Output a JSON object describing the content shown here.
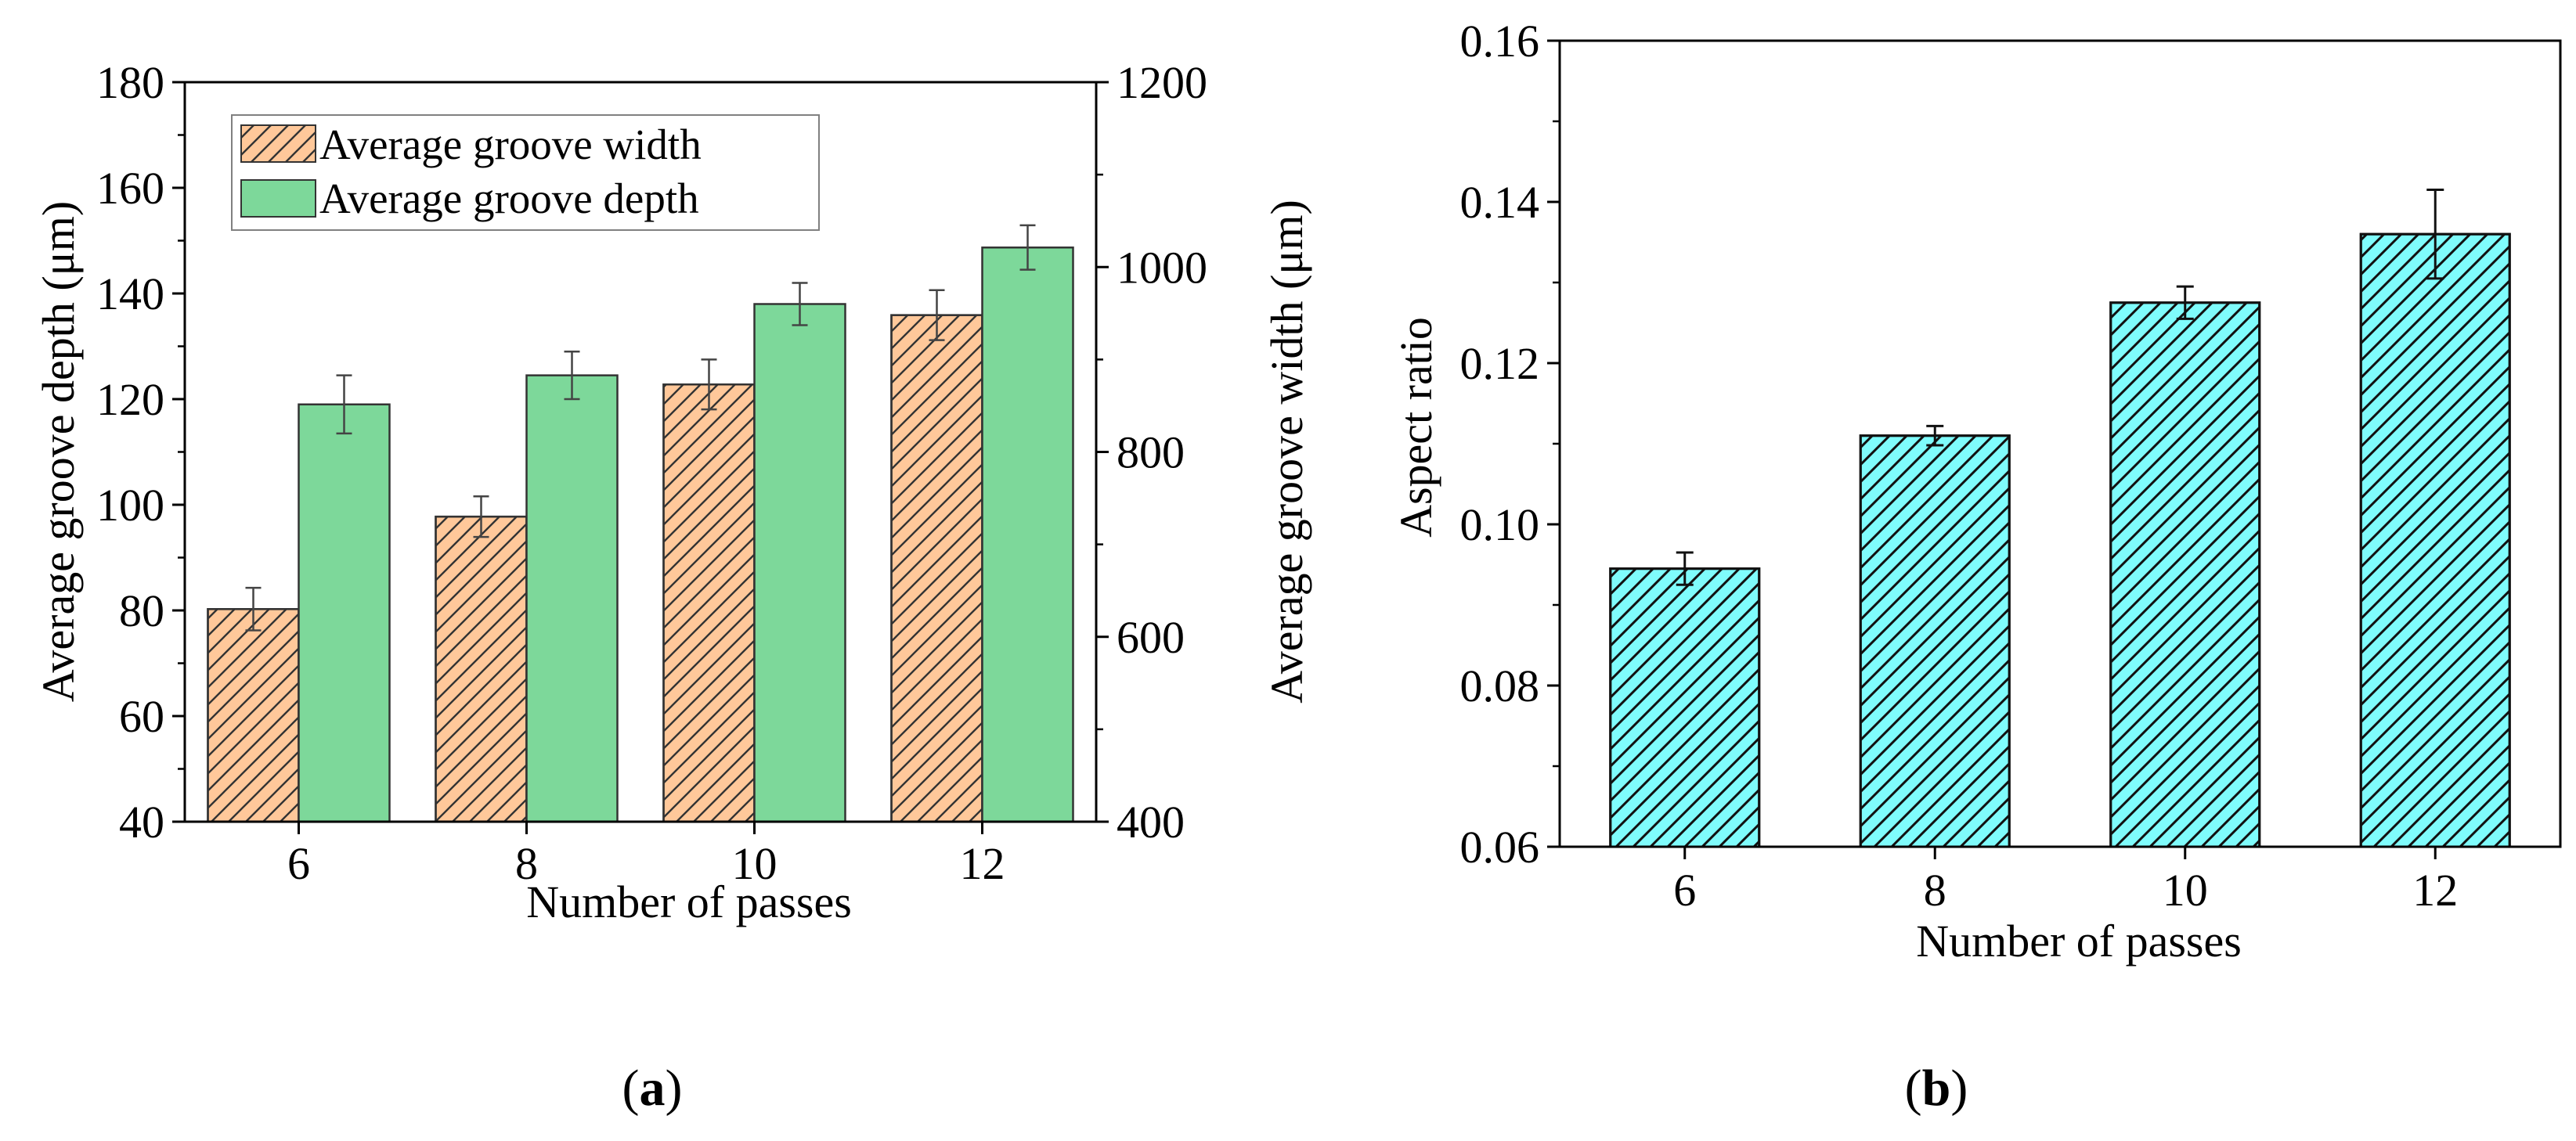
{
  "colors": {
    "width_fill": "#ffc89a",
    "depth_fill": "#7dd89a",
    "aspect_fill": "#7ffcfc",
    "hatch": "#333333"
  },
  "panel_labels": {
    "a": {
      "open": "(",
      "letter": "a",
      "close": ")"
    },
    "b": {
      "open": "(",
      "letter": "b",
      "close": ")"
    }
  },
  "chart_data": [
    {
      "id": "a",
      "type": "bar",
      "categories": [
        "6",
        "8",
        "10",
        "12"
      ],
      "xlabel": "Number of passes",
      "ylabel_left": "Average groove depth (μm)",
      "ylabel_right": "Average groove width (μm)",
      "ylim_left": [
        40,
        180
      ],
      "yticks_left": [
        40,
        60,
        80,
        100,
        120,
        140,
        160,
        180
      ],
      "ylim_right": [
        400,
        1200
      ],
      "yticks_right": [
        400,
        600,
        800,
        1000,
        1200
      ],
      "legend_position": "top-left",
      "series": [
        {
          "name": "Average groove width",
          "axis": "right",
          "pattern": "hatched",
          "values": [
            630,
            730,
            873,
            948
          ],
          "errors": [
            23,
            22,
            27,
            27
          ]
        },
        {
          "name": "Average groove depth",
          "axis": "left",
          "pattern": "solid",
          "values": [
            119,
            124.5,
            138,
            148.7
          ],
          "errors": [
            5.5,
            4.5,
            4,
            4.2
          ]
        }
      ]
    },
    {
      "id": "b",
      "type": "bar",
      "categories": [
        "6",
        "8",
        "10",
        "12"
      ],
      "xlabel": "Number of passes",
      "ylabel": "Aspect ratio",
      "ylim": [
        0.06,
        0.16
      ],
      "yticks": [
        "0.06",
        "0.08",
        "0.10",
        "0.12",
        "0.14",
        "0.16"
      ],
      "series": [
        {
          "pattern": "hatched",
          "values": [
            0.0945,
            0.111,
            0.1275,
            0.136
          ],
          "errors": [
            0.002,
            0.0012,
            0.002,
            0.0055
          ]
        }
      ]
    }
  ]
}
